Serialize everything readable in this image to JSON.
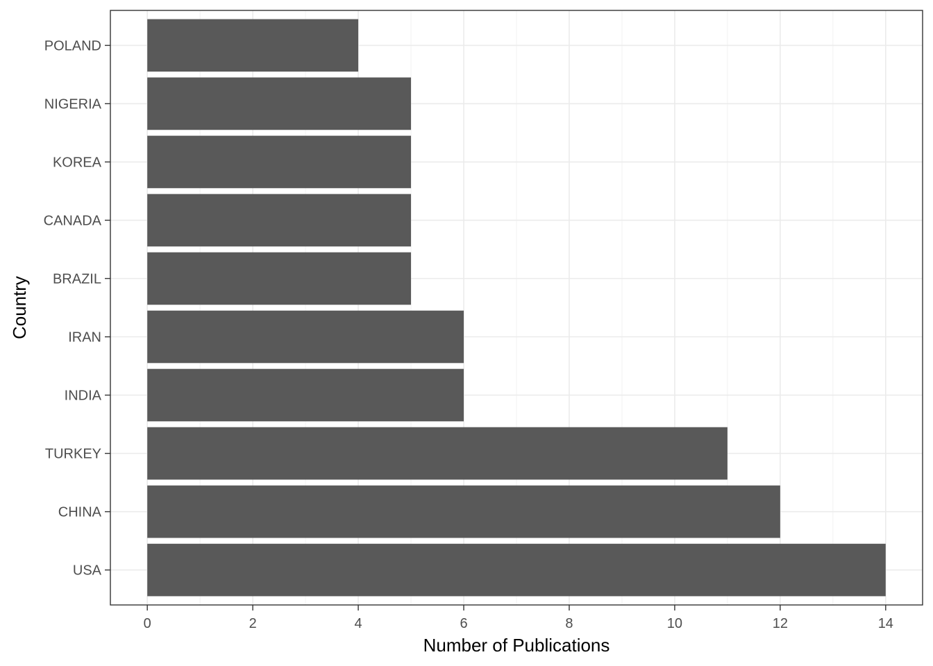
{
  "chart_data": {
    "type": "bar",
    "orientation": "horizontal",
    "categories": [
      "USA",
      "CHINA",
      "TURKEY",
      "INDIA",
      "IRAN",
      "BRAZIL",
      "CANADA",
      "KOREA",
      "NIGERIA",
      "POLAND"
    ],
    "values": [
      14,
      12,
      11,
      6,
      6,
      5,
      5,
      5,
      5,
      4
    ],
    "xlabel": "Number of Publications",
    "ylabel": "Country",
    "xlim": [
      -0.7,
      14.7
    ],
    "xticks": [
      0,
      2,
      4,
      6,
      8,
      10,
      12,
      14
    ],
    "grid": true,
    "legend": "none",
    "colors": {
      "bar": "#595959",
      "panel_border": "#333333",
      "grid_major": "#ebebeb",
      "grid_minor": "#f2f2f2",
      "tick_text": "#4d4d4d",
      "tick_mark": "#333333"
    }
  }
}
